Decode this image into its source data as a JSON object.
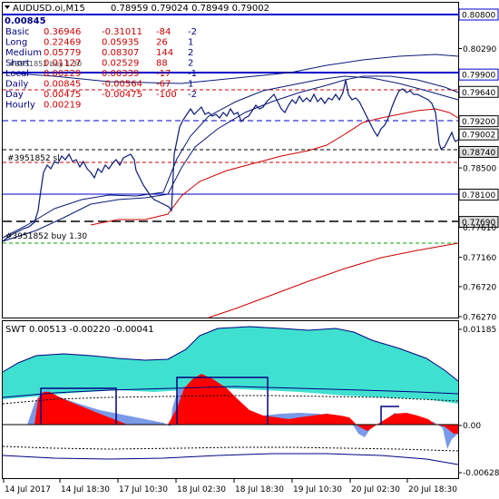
{
  "header": {
    "symbol": "AUDUSD.oi,M15",
    "ohlc": "0.78959 0.79024 0.78949 0.79002",
    "total": "0.00845"
  },
  "stats_rows": [
    {
      "label": "Basic",
      "a": "0.36946",
      "b": "-0.31011",
      "c": "-84",
      "d": "-2"
    },
    {
      "label": "Long",
      "a": "0.22469",
      "b": "0.05935",
      "c": "26",
      "d": "1"
    },
    {
      "label": "Medium",
      "a": "0.05779",
      "b": "0.08307",
      "c": "144",
      "d": "2"
    },
    {
      "label": "Short",
      "a": "0.01127",
      "b": "0.02529",
      "c": "88",
      "d": "2"
    },
    {
      "label": "Local",
      "a": "0.00229",
      "b": "0.00339",
      "c": "-17",
      "d": "-1"
    },
    {
      "label": "Daily",
      "a": "0.00845",
      "b": "-0.00564",
      "c": "-67",
      "d": "1"
    },
    {
      "label": "Day",
      "a": "0.00475",
      "b": "-0.00475",
      "c": "-100",
      "d": "-2"
    },
    {
      "label": "Hourly",
      "a": "0.00219",
      "b": "",
      "c": "",
      "d": ""
    }
  ],
  "order_labels": {
    "sell": "#3951852 sl",
    "buy": "#3951852 buy 1.30",
    "overlap": "#3951852 buy 1.30"
  },
  "price_levels": [
    {
      "label": "0.80800",
      "price": 0.808,
      "kind": "box_blue"
    },
    {
      "label": "0.80290",
      "price": 0.8029,
      "kind": "tick"
    },
    {
      "label": "0.79900",
      "price": 0.799,
      "kind": "box_blue"
    },
    {
      "label": "0.79640",
      "price": 0.7964,
      "kind": "box_white"
    },
    {
      "label": "0.79200",
      "price": 0.792,
      "kind": "box_white"
    },
    {
      "label": "0.79002",
      "price": 0.79002,
      "kind": "box_white"
    },
    {
      "label": "0.78740",
      "price": 0.7874,
      "kind": "box_gray"
    },
    {
      "label": "0.78500",
      "price": 0.785,
      "kind": "tick"
    },
    {
      "label": "0.78100",
      "price": 0.781,
      "kind": "box_white"
    },
    {
      "label": "0.77690",
      "price": 0.7769,
      "kind": "box_gray"
    },
    {
      "label": "0.77610",
      "price": 0.7761,
      "kind": "tick"
    },
    {
      "label": "0.77160",
      "price": 0.7716,
      "kind": "tick"
    },
    {
      "label": "0.76720",
      "price": 0.7672,
      "kind": "tick"
    },
    {
      "label": "0.76270",
      "price": 0.7627,
      "kind": "tick"
    }
  ],
  "indicator": {
    "name": "SWT",
    "values": "0.00513 -0.00220 -0.00041",
    "axis_labels": [
      "0.01185",
      "0.00",
      "-0.00628"
    ]
  },
  "time_axis": [
    "14 Jul 2017",
    "14 Jul 18:30",
    "17 Jul 10:30",
    "18 Jul 02:30",
    "18 Jul 18:30",
    "19 Jul 10:30",
    "20 Jul 02:30",
    "20 Jul 18:30"
  ],
  "colors": {
    "price": "#0a1a78",
    "axis": "#000000",
    "blue_level": "#0000cc",
    "red_level": "#cc0000",
    "green_level": "#00aa00",
    "turquoise": "#40e0d0",
    "red_fill": "#ff0000",
    "blue_fill": "#7a9ae8",
    "navy": "#000080"
  }
}
